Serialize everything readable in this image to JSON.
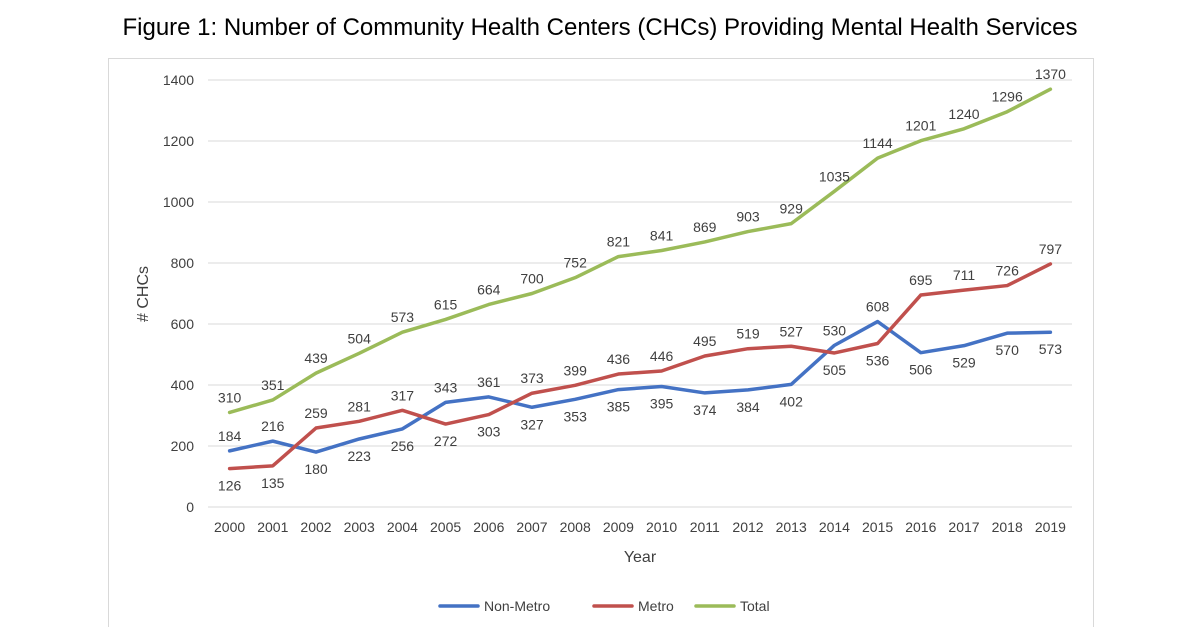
{
  "chart_data": {
    "type": "line",
    "title": "Figure 1: Number of Community Health Centers (CHCs) Providing Mental Health Services",
    "xlabel": "Year",
    "ylabel": "# CHCs",
    "ylim": [
      0,
      1400
    ],
    "yticks": [
      "0",
      "200",
      "400",
      "600",
      "800",
      "1000",
      "1200",
      "1400"
    ],
    "grid": true,
    "legend_position": "bottom",
    "categories": [
      "2000",
      "2001",
      "2002",
      "2003",
      "2004",
      "2005",
      "2006",
      "2007",
      "2008",
      "2009",
      "2010",
      "2011",
      "2012",
      "2013",
      "2014",
      "2015",
      "2016",
      "2017",
      "2018",
      "2019"
    ],
    "series": [
      {
        "name": "Non-Metro",
        "color": "#4472c4",
        "values": [
          184,
          216,
          180,
          223,
          256,
          343,
          361,
          327,
          353,
          385,
          395,
          374,
          384,
          402,
          530,
          608,
          506,
          529,
          570,
          573
        ]
      },
      {
        "name": "Metro",
        "color": "#c0504d",
        "values": [
          126,
          135,
          259,
          281,
          317,
          272,
          303,
          373,
          399,
          436,
          446,
          495,
          519,
          527,
          505,
          536,
          695,
          711,
          726,
          797
        ]
      },
      {
        "name": "Total",
        "color": "#9bbb59",
        "values": [
          310,
          351,
          439,
          504,
          573,
          615,
          664,
          700,
          752,
          821,
          841,
          869,
          903,
          929,
          1035,
          1144,
          1201,
          1240,
          1296,
          1370
        ]
      }
    ]
  }
}
